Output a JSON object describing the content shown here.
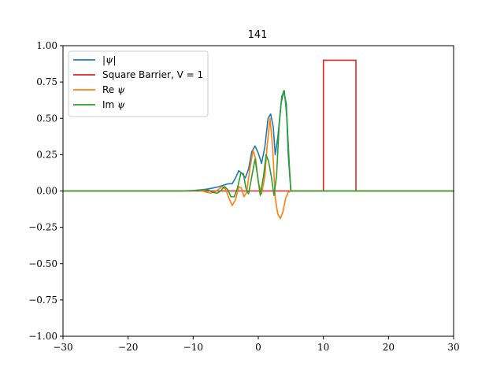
{
  "chart_data": {
    "type": "line",
    "title": "141",
    "xlabel": "",
    "ylabel": "",
    "xlim": [
      -30,
      30
    ],
    "ylim": [
      -1.0,
      1.0
    ],
    "xticks": [
      -30,
      -20,
      -10,
      0,
      10,
      20,
      30
    ],
    "xtick_labels": [
      "−30",
      "−20",
      "−10",
      "0",
      "10",
      "20",
      "30"
    ],
    "yticks": [
      -1.0,
      -0.75,
      -0.5,
      -0.25,
      0.0,
      0.25,
      0.5,
      0.75,
      1.0
    ],
    "ytick_labels": [
      "−1.00",
      "−0.75",
      "−0.50",
      "−0.25",
      "0.00",
      "0.25",
      "0.50",
      "0.75",
      "1.00"
    ],
    "grid": false,
    "legend_position": "upper-left",
    "legend": [
      {
        "label_prefix": "",
        "label_symbol": "|ψ|",
        "color": "#1f77b4"
      },
      {
        "label_prefix": "Square Barrier, V = 1",
        "label_symbol": "",
        "color": "#d62728"
      },
      {
        "label_prefix": "Re ",
        "label_symbol": "ψ",
        "color": "#ff7f0e"
      },
      {
        "label_prefix": "Im ",
        "label_symbol": "ψ",
        "color": "#2ca02c"
      }
    ],
    "series": [
      {
        "name": "|ψ|",
        "color": "#1f77b4",
        "x": [
          -30,
          -12,
          -10,
          -9,
          -8,
          -7,
          -6,
          -5,
          -4.5,
          -4,
          -3.5,
          -3,
          -2.5,
          -2,
          -1.5,
          -1,
          -0.5,
          0,
          0.5,
          1,
          1.5,
          1.9,
          2.3,
          2.6,
          3,
          3.5,
          3.9,
          4.3,
          4.6,
          5.0,
          30
        ],
        "y": [
          0,
          0,
          0.003,
          0.007,
          0.012,
          0.02,
          0.03,
          0.045,
          0.05,
          0.05,
          0.09,
          0.14,
          0.12,
          0.09,
          0.15,
          0.27,
          0.31,
          0.26,
          0.19,
          0.3,
          0.5,
          0.53,
          0.44,
          0.25,
          0.37,
          0.6,
          0.69,
          0.6,
          0.25,
          0.0,
          0.0
        ]
      },
      {
        "name": "Square Barrier, V = 1",
        "color": "#d62728",
        "x": [
          -30,
          10,
          10,
          15,
          15,
          30
        ],
        "y": [
          0,
          0,
          0.9,
          0.9,
          0,
          0
        ]
      },
      {
        "name": "Re ψ",
        "color": "#ff7f0e",
        "x": [
          -30,
          -12,
          -10,
          -9.3,
          -8.6,
          -8,
          -7.3,
          -6.6,
          -6,
          -5.5,
          -5,
          -4.5,
          -4,
          -3.5,
          -3,
          -2.6,
          -2.2,
          -1.8,
          -1.3,
          -0.8,
          -0.4,
          0.0,
          0.5,
          1.0,
          1.4,
          1.8,
          2.2,
          2.6,
          3.0,
          3.4,
          3.8,
          4.2,
          4.6,
          5.0,
          30
        ],
        "y": [
          0,
          0,
          0.001,
          0.004,
          0.0,
          -0.008,
          -0.015,
          -0.005,
          0.015,
          0.03,
          0.01,
          -0.05,
          -0.1,
          -0.06,
          0.03,
          0.02,
          -0.04,
          -0.01,
          0.15,
          0.28,
          0.22,
          0.06,
          -0.02,
          0.1,
          0.33,
          0.5,
          0.3,
          -0.05,
          -0.16,
          -0.19,
          -0.14,
          -0.05,
          -0.01,
          0.0,
          0.0
        ]
      },
      {
        "name": "Im ψ",
        "color": "#2ca02c",
        "x": [
          -30,
          -12,
          -10,
          -9,
          -8.3,
          -7.6,
          -7,
          -6.3,
          -5.8,
          -5.2,
          -4.7,
          -4.2,
          -3.7,
          -3.2,
          -2.7,
          -2.3,
          -1.9,
          -1.5,
          -1.0,
          -0.5,
          -0.1,
          0.3,
          0.8,
          1.2,
          1.6,
          2.0,
          2.4,
          2.8,
          3.2,
          3.6,
          4.0,
          4.4,
          4.8,
          5.0,
          30
        ],
        "y": [
          0,
          0,
          0.002,
          0.005,
          0.01,
          0.005,
          -0.01,
          -0.015,
          0.0,
          0.03,
          0.01,
          -0.04,
          -0.04,
          0.02,
          0.12,
          0.12,
          0.02,
          -0.02,
          0.1,
          0.22,
          0.1,
          -0.03,
          0.1,
          0.25,
          0.2,
          0.1,
          -0.03,
          0.1,
          0.45,
          0.65,
          0.69,
          0.5,
          0.15,
          0.0,
          0.0
        ]
      }
    ]
  }
}
